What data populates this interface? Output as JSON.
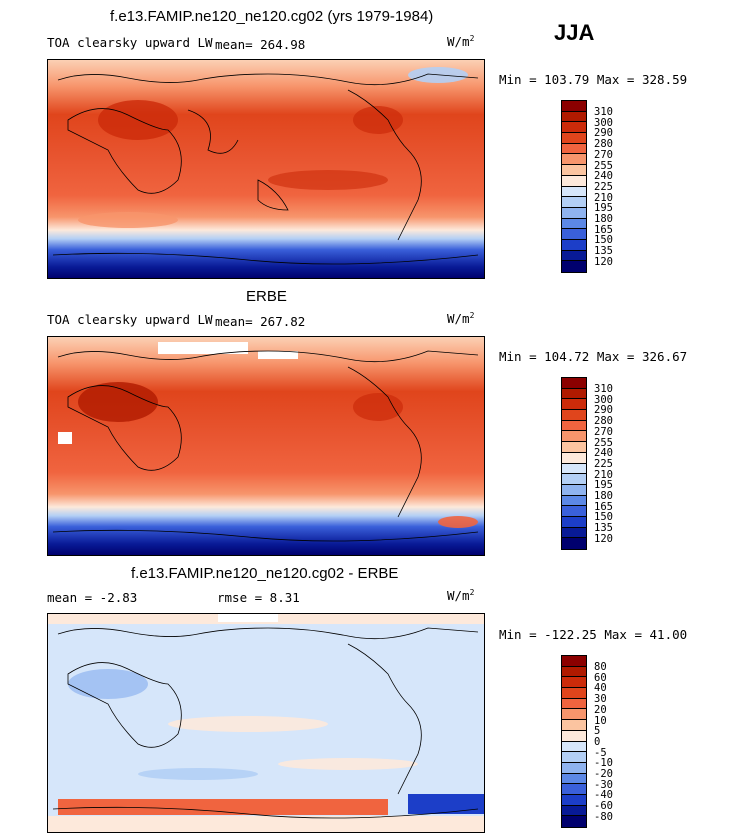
{
  "main_title": "f.e13.FAMIP.ne120_ne120.cg02 (yrs 1979-1984)",
  "season": "JJA",
  "units_label": "W/m",
  "units_sup": "2",
  "panels": [
    {
      "header": "",
      "left_label": "TOA clearsky upward LW",
      "mean_label": "mean= 264.98",
      "minmax": "Min = 103.79 Max = 328.59",
      "colorbar_labels": [
        "310",
        "300",
        "290",
        "280",
        "270",
        "255",
        "240",
        "225",
        "210",
        "195",
        "180",
        "165",
        "150",
        "135",
        "120"
      ]
    },
    {
      "header": "ERBE",
      "left_label": "TOA clearsky upward LW",
      "mean_label": "mean= 267.82",
      "minmax": "Min = 104.72 Max = 326.67",
      "colorbar_labels": [
        "310",
        "300",
        "290",
        "280",
        "270",
        "255",
        "240",
        "225",
        "210",
        "195",
        "180",
        "165",
        "150",
        "135",
        "120"
      ]
    },
    {
      "header": "f.e13.FAMIP.ne120_ne120.cg02 - ERBE",
      "mean_label": "mean =   -2.83",
      "rmse_label": "rmse =    8.31",
      "minmax": "Min = -122.25 Max =  41.00",
      "colorbar_labels": [
        "80",
        "60",
        "40",
        "30",
        "20",
        "10",
        "5",
        "0",
        "-5",
        "-10",
        "-20",
        "-30",
        "-40",
        "-60",
        "-80"
      ]
    }
  ],
  "colorbar_colors_abs": [
    "#8b0000",
    "#b01a00",
    "#cc2b0a",
    "#e0451c",
    "#f0643f",
    "#f7956c",
    "#fbc4a0",
    "#fde9db",
    "#d6e6fa",
    "#b3cff5",
    "#8fb3ef",
    "#5c88e6",
    "#3a60da",
    "#1c3ec8",
    "#081a96",
    "#00006e"
  ],
  "colorbar_colors_diff": [
    "#8b0000",
    "#b01a00",
    "#cc2b0a",
    "#e0451c",
    "#f0643f",
    "#f7956c",
    "#fbc4a0",
    "#fde9db",
    "#d6e6fa",
    "#b3cff5",
    "#8fb3ef",
    "#5c88e6",
    "#3a60da",
    "#1c3ec8",
    "#081a96",
    "#00006e"
  ]
}
